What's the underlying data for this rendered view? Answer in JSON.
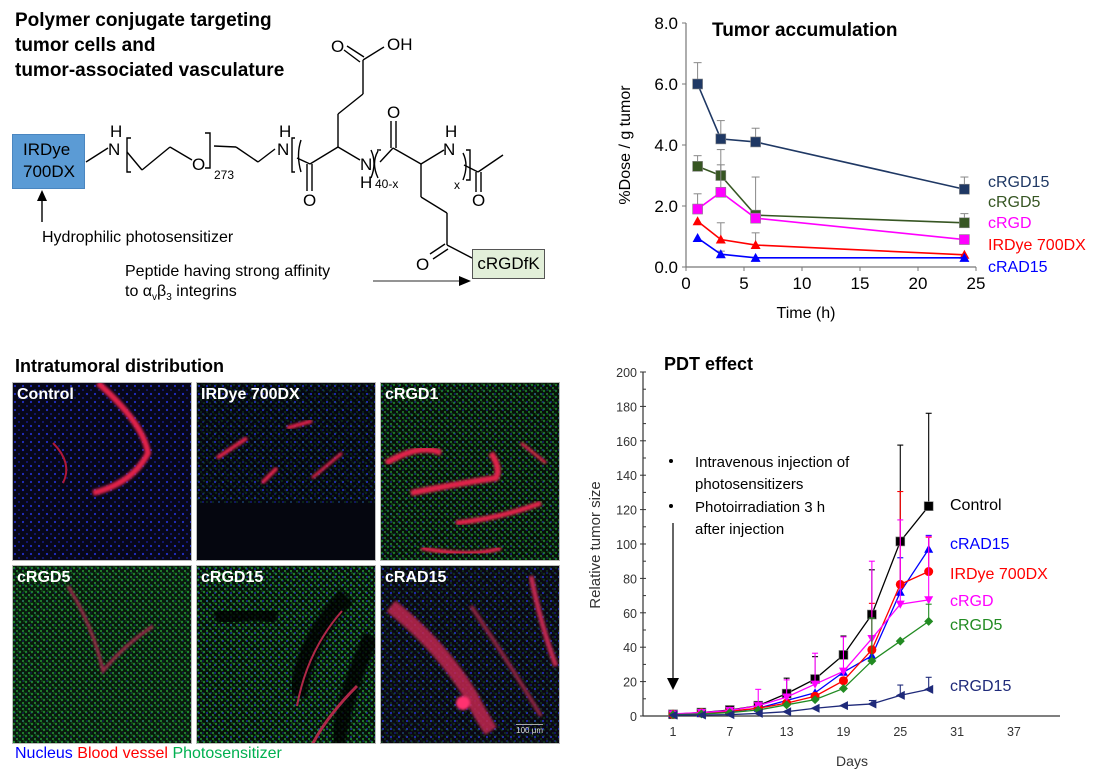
{
  "structure": {
    "title_lines": [
      "Polymer conjugate targeting",
      "tumor cells and",
      "tumor-associated vasculature"
    ],
    "dye_box": {
      "line1": "IRDye",
      "line2": "700DX",
      "color": "#5b9bd5"
    },
    "peptide_box": {
      "label": "cRGDfK",
      "color": "#e2efd9"
    },
    "dye_note": "Hydrophilic photosensitizer",
    "peptide_note_line1": "Peptide having strong affinity",
    "peptide_note_line2_prefix": "to ",
    "peptide_note_alpha": "α",
    "peptide_note_alpha_sub": "v",
    "peptide_note_beta": "β",
    "peptide_note_beta_sub": "3",
    "peptide_note_line2_suffix": " integrins",
    "atoms": {
      "N": "N",
      "H": "H",
      "O": "O",
      "OH": "OH"
    },
    "subscripts": {
      "peg": "273",
      "block1": "40-x",
      "block2": "x"
    }
  },
  "distribution": {
    "title": "Intratumoral distribution",
    "panels": [
      {
        "label": "Control"
      },
      {
        "label": "IRDye 700DX"
      },
      {
        "label": "cRGD1"
      },
      {
        "label": "cRGD5"
      },
      {
        "label": "cRGD15"
      },
      {
        "label": "cRAD15"
      }
    ],
    "scale_bar": "100 μm",
    "legend": [
      {
        "label": "Nucleus",
        "color": "#0000ff"
      },
      {
        "label": "Blood vessel",
        "color": "#ff0000"
      },
      {
        "label": "Photosensitizer",
        "color": "#00b050"
      }
    ]
  },
  "chart_data": [
    {
      "type": "line",
      "title": "Tumor accumulation",
      "xlabel": "Time (h)",
      "ylabel": "%Dose / g tumor",
      "xlim": [
        0,
        25
      ],
      "ylim": [
        0,
        8
      ],
      "xticks": [
        "0",
        "5",
        "10",
        "15",
        "20",
        "25"
      ],
      "yticks": [
        "0.0",
        "2.0",
        "4.0",
        "6.0",
        "8.0"
      ],
      "x": [
        1,
        3,
        6,
        24
      ],
      "legend_position": "right",
      "series": [
        {
          "name": "cRGD15",
          "color": "#1f3864",
          "marker": "square",
          "values": [
            6.0,
            4.2,
            4.1,
            2.55
          ],
          "err": [
            0.7,
            0.6,
            0.45,
            0.4
          ]
        },
        {
          "name": "cRGD5",
          "color": "#375623",
          "marker": "square",
          "values": [
            3.3,
            3.0,
            1.7,
            1.45
          ],
          "err": [
            0.35,
            0.85,
            1.25,
            0.3
          ]
        },
        {
          "name": "cRGD",
          "color": "#ff00ff",
          "marker": "square",
          "values": [
            1.9,
            2.45,
            1.6,
            0.9
          ],
          "err": [
            0.5,
            0.9,
            0.0,
            0.0
          ]
        },
        {
          "name": "IRDye 700DX",
          "color": "#ff0000",
          "marker": "triangle",
          "values": [
            1.5,
            0.9,
            0.72,
            0.4
          ],
          "err": [
            0.0,
            0.55,
            0.4,
            0.0
          ]
        },
        {
          "name": "cRAD15",
          "color": "#0000ff",
          "marker": "triangle",
          "values": [
            0.95,
            0.42,
            0.3,
            0.3
          ],
          "err": [
            0.0,
            0.1,
            0.0,
            0.0
          ]
        }
      ]
    },
    {
      "type": "line",
      "title": "PDT effect",
      "xlabel": "Days",
      "ylabel": "Relative tumor size",
      "xlim": [
        -2,
        42
      ],
      "ylim": [
        0,
        200
      ],
      "xticks": [
        "1",
        "7",
        "13",
        "19",
        "25",
        "31",
        "37"
      ],
      "yticks": [
        "0",
        "20",
        "40",
        "60",
        "80",
        "100",
        "120",
        "140",
        "160",
        "180",
        "200"
      ],
      "x": [
        1,
        4,
        7,
        10,
        13,
        16,
        19,
        22,
        25,
        28
      ],
      "annotations": [
        "Intravenous injection of",
        "photosensitizers",
        "Photoirradiation 3 h",
        "after injection"
      ],
      "legend_position": "right",
      "series": [
        {
          "name": "Control",
          "color": "#000000",
          "marker": "square",
          "values": [
            1,
            2,
            3.5,
            6,
            13,
            21.5,
            35.5,
            59,
            101.5,
            122
          ],
          "err": [
            0,
            0,
            0,
            0,
            9,
            13,
            11,
            26,
            56,
            54
          ]
        },
        {
          "name": "cRAD15",
          "color": "#0000ff",
          "marker": "triangle-up",
          "values": [
            1,
            1.5,
            2.5,
            4.5,
            9,
            13.5,
            25.5,
            35,
            72,
            97
          ],
          "err": [
            0,
            0,
            0,
            0,
            0,
            0,
            0,
            0,
            20,
            8
          ]
        },
        {
          "name": "IRDye 700DX",
          "color": "#ff0000",
          "marker": "circle",
          "values": [
            1,
            1.8,
            2.8,
            4.5,
            7.5,
            11.5,
            20.5,
            38.5,
            76.5,
            84
          ],
          "err": [
            0,
            0,
            0,
            0,
            0,
            0,
            0,
            27,
            54,
            20
          ]
        },
        {
          "name": "cRGD",
          "color": "#ff00ff",
          "marker": "triangle-down",
          "values": [
            1.2,
            2,
            3.2,
            6,
            11,
            18.5,
            26,
            45,
            65,
            67.5
          ],
          "err": [
            0,
            0,
            0,
            9.5,
            10,
            18,
            20,
            45,
            49,
            37
          ]
        },
        {
          "name": "cRGD5",
          "color": "#228b22",
          "marker": "diamond",
          "values": [
            0.8,
            1.2,
            2,
            3.5,
            6.5,
            9.5,
            16,
            32,
            43.5,
            55
          ],
          "err": [
            0,
            0,
            0,
            0,
            0,
            0,
            0,
            25,
            0,
            10
          ]
        },
        {
          "name": "cRGD15",
          "color": "#1f2a7a",
          "marker": "triangle-left",
          "values": [
            0.5,
            0.6,
            0.8,
            1.5,
            2.5,
            4.5,
            6,
            7,
            12,
            15.5
          ],
          "err": [
            0,
            0,
            0,
            0,
            0,
            0,
            0,
            2,
            6,
            7
          ]
        }
      ]
    }
  ]
}
